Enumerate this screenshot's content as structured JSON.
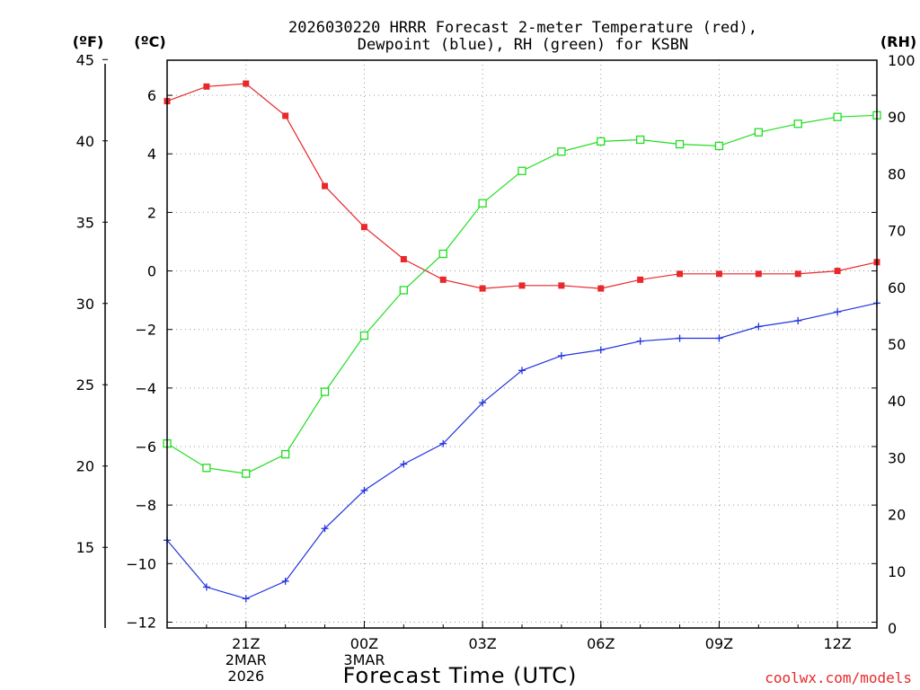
{
  "chart_data": {
    "type": "line",
    "title_lines": [
      "2026030220 HRRR Forecast 2-meter Temperature (red),",
      "Dewpoint (blue), RH (green) for KSBN"
    ],
    "units": {
      "fahrenheit": "(ºF)",
      "celsius": "(ºC)",
      "rh": "(RH)"
    },
    "xlabel": "Forecast Time (UTC)",
    "credit": "coolwx.com/models",
    "x_hours": [
      19,
      20,
      21,
      22,
      23,
      24,
      25,
      26,
      27,
      28,
      29,
      30,
      31,
      32,
      33,
      34,
      35,
      36,
      37
    ],
    "x_ticks": [
      {
        "hour": 21,
        "lines": [
          "21Z",
          "2MAR",
          "2026"
        ]
      },
      {
        "hour": 24,
        "lines": [
          "00Z",
          "3MAR"
        ]
      },
      {
        "hour": 27,
        "lines": [
          "03Z"
        ]
      },
      {
        "hour": 30,
        "lines": [
          "06Z"
        ]
      },
      {
        "hour": 33,
        "lines": [
          "09Z"
        ]
      },
      {
        "hour": 36,
        "lines": [
          "12Z"
        ]
      }
    ],
    "celsius_ticks": [
      6,
      4,
      2,
      0,
      -2,
      -4,
      -6,
      -8,
      -10,
      -12
    ],
    "fahrenheit_ticks": [
      45,
      40,
      35,
      30,
      25,
      20,
      15
    ],
    "rh_ticks": [
      100,
      90,
      80,
      70,
      60,
      50,
      40,
      30,
      20,
      10,
      0
    ],
    "ylim_celsius": [
      -12.2,
      7.2
    ],
    "ylim_rh": [
      0,
      100
    ],
    "series": [
      {
        "name": "2-meter Temperature",
        "color": "#e8282b",
        "marker": "filled-square",
        "axis": "celsius",
        "values": [
          5.8,
          6.3,
          6.4,
          5.3,
          2.9,
          1.5,
          0.4,
          -0.3,
          -0.6,
          -0.5,
          -0.5,
          -0.6,
          -0.3,
          -0.1,
          -0.1,
          -0.1,
          -0.1,
          0.0,
          0.3
        ]
      },
      {
        "name": "Dewpoint",
        "color": "#2233dd",
        "marker": "plus",
        "axis": "celsius",
        "values": [
          -9.2,
          -10.8,
          -11.2,
          -10.6,
          -8.8,
          -7.5,
          -6.6,
          -5.9,
          -4.5,
          -3.4,
          -2.9,
          -2.7,
          -2.4,
          -2.3,
          -2.3,
          -1.9,
          -1.7,
          -1.4,
          -1.1
        ]
      },
      {
        "name": "RH",
        "color": "#22dd22",
        "marker": "open-square",
        "axis": "rh",
        "values": [
          32.5,
          28.2,
          27.2,
          30.6,
          41.6,
          51.5,
          59.5,
          65.9,
          74.8,
          80.5,
          83.9,
          85.7,
          86.0,
          85.2,
          84.9,
          87.3,
          88.8,
          90.0,
          90.3
        ]
      }
    ]
  }
}
